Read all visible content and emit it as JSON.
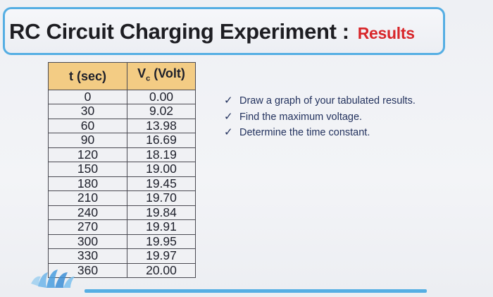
{
  "title": {
    "main": "RC Circuit Charging Experiment",
    "colon": ":",
    "accent": "Results"
  },
  "table": {
    "headers": [
      "t (sec)",
      "Vc (Volt)"
    ],
    "header_vc_main": "V",
    "header_vc_sub": "c",
    "header_vc_unit": " (Volt)",
    "rows": [
      [
        "0",
        "0.00"
      ],
      [
        "30",
        "9.02"
      ],
      [
        "60",
        "13.98"
      ],
      [
        "90",
        "16.69"
      ],
      [
        "120",
        "18.19"
      ],
      [
        "150",
        "19.00"
      ],
      [
        "180",
        "19.45"
      ],
      [
        "210",
        "19.70"
      ],
      [
        "240",
        "19.84"
      ],
      [
        "270",
        "19.91"
      ],
      [
        "300",
        "19.95"
      ],
      [
        "330",
        "19.97"
      ],
      [
        "360",
        "20.00"
      ]
    ]
  },
  "tasks": [
    "Draw a graph of your tabulated results.",
    "Find the maximum voltage.",
    "Determine the time constant."
  ],
  "colors": {
    "accent_red": "#d8262a",
    "border_blue": "#55aee3",
    "header_fill": "#f3cc84",
    "bullet_text": "#23325e"
  },
  "icons": {
    "check": "checkmark-icon",
    "logo": "hands-logo-icon"
  }
}
